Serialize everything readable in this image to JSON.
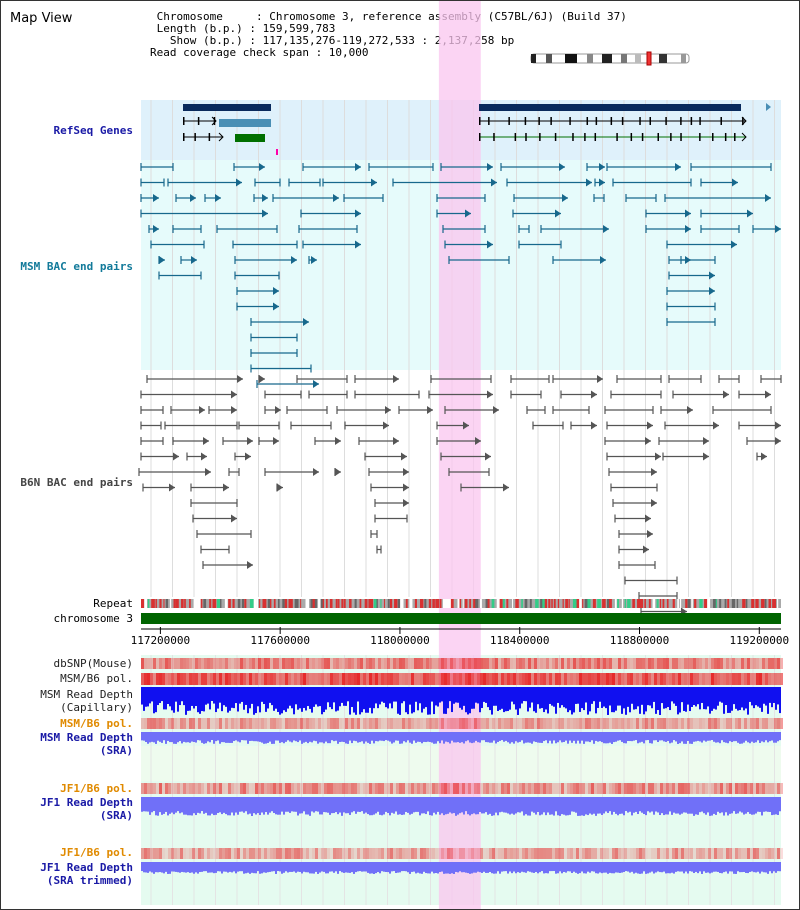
{
  "title": "Map View",
  "header": {
    "line1": " Chromosome     : Chromosome 3, reference assembly (C57BL/6J) (Build 37)",
    "line2": " Length (b.p.) : 159,599,783",
    "line3": "   Show (b.p.) : 117,135,276-119,272,533 : 2,137,258 bp",
    "line4": "Read coverage check span : 10,000"
  },
  "tracks": {
    "refseq": "RefSeq Genes",
    "msm_bac": "MSM BAC end pairs",
    "b6n_bac": "B6N BAC end pairs",
    "repeat": "Repeat",
    "chromosome": "chromosome 3",
    "dbsnp": "dbSNP(Mouse)",
    "msm_b6_pol_1": "MSM/B6 pol.",
    "msm_depth_cap_1": "MSM Read Depth",
    "msm_depth_cap_2": "(Capillary)",
    "msm_b6_pol_2": "MSM/B6 pol.",
    "msm_depth_sra_1": "MSM Read Depth",
    "msm_depth_sra_2": "(SRA)",
    "jf1_b6_pol_1": "JF1/B6 pol.",
    "jf1_depth_sra_1": "JF1 Read Depth",
    "jf1_depth_sra_2": "(SRA)",
    "jf1_b6_pol_2": "JF1/B6 pol.",
    "jf1_depth_trim_1": "JF1 Read Depth",
    "jf1_depth_trim_2": "(SRA trimmed)"
  },
  "axis": {
    "start": 117135276,
    "end": 119272533,
    "ticks": [
      "117200000",
      "117600000",
      "118000000",
      "118400000",
      "118800000",
      "119200000"
    ]
  },
  "highlight": {
    "start": 118130000,
    "end": 118270000
  },
  "colors": {
    "refseq_bg": "#dff1fb",
    "msm_bg": "#e6fbfb",
    "depth_bg": "#e5fbf0",
    "highlight": "#f9c6ef",
    "gene_dark": "#0a2a5c",
    "gene_mid": "#4a8fb5",
    "gene_green": "#007000",
    "msm_color": "#17688c",
    "b6n_color": "#555555",
    "label_blue": "#1a1aa6",
    "label_teal": "#127a9a",
    "label_gray": "#444444",
    "label_orange": "#e08a00",
    "repeat_red": "#d83030",
    "chromosome_green": "#006400",
    "depth_blue": "#1010f0",
    "depth_light": "#7070f8"
  }
}
